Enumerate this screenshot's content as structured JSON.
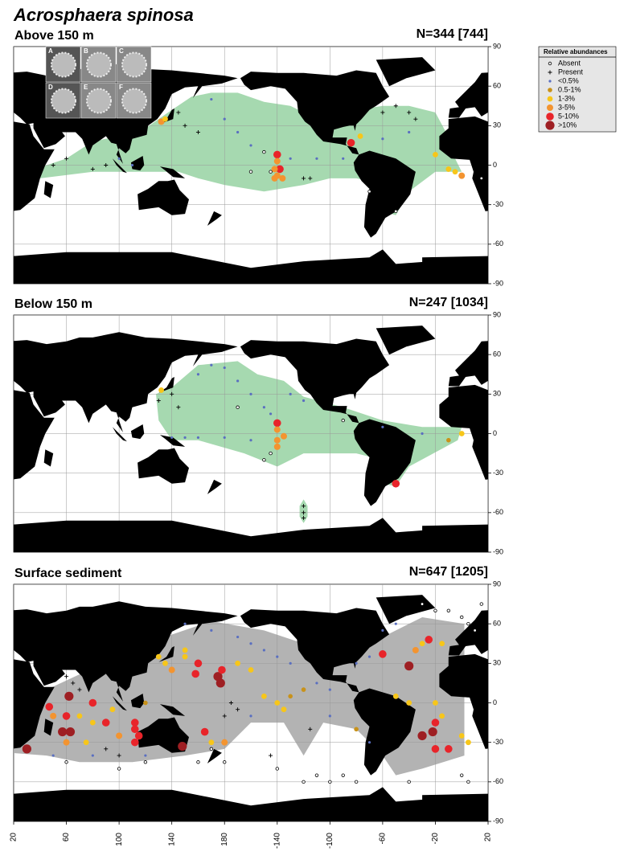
{
  "title": "Acrosphaera spinosa",
  "photo_labels": [
    "A",
    "B",
    "C",
    "D",
    "E",
    "F"
  ],
  "map": {
    "lonlim": [
      20,
      380
    ],
    "latlim": [
      -90,
      90
    ],
    "lat_ticks": [
      90,
      60,
      30,
      0,
      -30,
      -60,
      -90
    ],
    "lon_ticks": [
      20,
      60,
      100,
      140,
      180,
      {
        "value": 220,
        "label": "-140"
      },
      {
        "value": 260,
        "label": "-100"
      },
      {
        "value": 300,
        "label": "-60"
      },
      {
        "value": 340,
        "label": "-20"
      },
      {
        "value": 380,
        "label": "20"
      }
    ]
  },
  "legend": {
    "title": "Relative abundances",
    "items": [
      {
        "name": "Absent",
        "color": "#000000",
        "marker": "open"
      },
      {
        "name": "Present",
        "color": "#000000",
        "marker": "plus"
      },
      {
        "name": "<0.5%",
        "color": "#5a6fc0",
        "marker": "dot"
      },
      {
        "name": "0.5-1%",
        "color": "#c8921a",
        "marker": "disc"
      },
      {
        "name": "1-3%",
        "color": "#f7c61a",
        "marker": "disc"
      },
      {
        "name": "3-5%",
        "color": "#f39430",
        "marker": "disc"
      },
      {
        "name": "5-10%",
        "color": "#e8242a",
        "marker": "disc"
      },
      {
        "name": ">10%",
        "color": "#9e1f23",
        "marker": "disc"
      }
    ]
  },
  "panels": [
    {
      "title": "Above 150 m",
      "n_label": "N=344 [744]",
      "range_color": "#a6d9b0",
      "points": [
        [
          220,
          8,
          "5-10%"
        ],
        [
          220,
          3,
          "3-5%"
        ],
        [
          222,
          -3,
          "5-10%"
        ],
        [
          220,
          -8,
          "3-5%"
        ],
        [
          224,
          -10,
          "3-5%"
        ],
        [
          218,
          -10,
          "3-5%"
        ],
        [
          218,
          -3,
          "3-5%"
        ],
        [
          276,
          17,
          "5-10%"
        ],
        [
          132,
          33,
          "3-5%"
        ],
        [
          135,
          35,
          "1-3%"
        ],
        [
          283,
          22,
          "1-3%"
        ],
        [
          340,
          8,
          "1-3%"
        ],
        [
          350,
          -3,
          "1-3%"
        ],
        [
          355,
          -5,
          "1-3%"
        ],
        [
          360,
          -8,
          "3-5%"
        ],
        [
          170,
          50,
          "<0.5%"
        ],
        [
          180,
          35,
          "<0.5%"
        ],
        [
          190,
          25,
          "<0.5%"
        ],
        [
          200,
          15,
          "<0.5%"
        ],
        [
          230,
          5,
          "<0.5%"
        ],
        [
          250,
          5,
          "<0.5%"
        ],
        [
          270,
          5,
          "<0.5%"
        ],
        [
          300,
          20,
          "<0.5%"
        ],
        [
          320,
          25,
          "<0.5%"
        ],
        [
          100,
          5,
          "<0.5%"
        ],
        [
          110,
          0,
          "<0.5%"
        ],
        [
          145,
          40,
          "Present"
        ],
        [
          150,
          30,
          "Present"
        ],
        [
          160,
          25,
          "Present"
        ],
        [
          270,
          35,
          "Present"
        ],
        [
          300,
          40,
          "Present"
        ],
        [
          310,
          45,
          "Present"
        ],
        [
          320,
          40,
          "Present"
        ],
        [
          325,
          35,
          "Present"
        ],
        [
          40,
          5,
          "Present"
        ],
        [
          50,
          0,
          "Present"
        ],
        [
          60,
          5,
          "Present"
        ],
        [
          80,
          -3,
          "Present"
        ],
        [
          90,
          0,
          "Present"
        ],
        [
          240,
          -10,
          "Present"
        ],
        [
          245,
          -10,
          "Present"
        ],
        [
          210,
          10,
          "Absent"
        ],
        [
          215,
          -5,
          "Absent"
        ],
        [
          200,
          -5,
          "Absent"
        ],
        [
          310,
          -35,
          "Absent"
        ],
        [
          290,
          -20,
          "Absent"
        ],
        [
          375,
          -10,
          "Absent"
        ]
      ]
    },
    {
      "title": "Below 150 m",
      "n_label": "N=247 [1034]",
      "range_color": "#a6d9b0",
      "points": [
        [
          220,
          8,
          "5-10%"
        ],
        [
          220,
          3,
          "3-5%"
        ],
        [
          225,
          -2,
          "3-5%"
        ],
        [
          220,
          -5,
          "3-5%"
        ],
        [
          220,
          -10,
          "3-5%"
        ],
        [
          310,
          -38,
          "5-10%"
        ],
        [
          132,
          33,
          "1-3%"
        ],
        [
          360,
          0,
          "1-3%"
        ],
        [
          350,
          -5,
          "0.5-1%"
        ],
        [
          160,
          45,
          "<0.5%"
        ],
        [
          170,
          52,
          "<0.5%"
        ],
        [
          180,
          50,
          "<0.5%"
        ],
        [
          190,
          40,
          "<0.5%"
        ],
        [
          200,
          30,
          "<0.5%"
        ],
        [
          210,
          20,
          "<0.5%"
        ],
        [
          215,
          15,
          "<0.5%"
        ],
        [
          230,
          30,
          "<0.5%"
        ],
        [
          240,
          25,
          "<0.5%"
        ],
        [
          140,
          -3,
          "<0.5%"
        ],
        [
          150,
          -3,
          "<0.5%"
        ],
        [
          160,
          -3,
          "<0.5%"
        ],
        [
          180,
          -3,
          "<0.5%"
        ],
        [
          200,
          -5,
          "<0.5%"
        ],
        [
          300,
          5,
          "<0.5%"
        ],
        [
          330,
          0,
          "<0.5%"
        ],
        [
          240,
          -55,
          "Present"
        ],
        [
          240,
          -60,
          "Present"
        ],
        [
          240,
          -64,
          "Present"
        ],
        [
          130,
          25,
          "Present"
        ],
        [
          140,
          30,
          "Present"
        ],
        [
          145,
          20,
          "Present"
        ],
        [
          190,
          20,
          "Absent"
        ],
        [
          215,
          -15,
          "Absent"
        ],
        [
          210,
          -20,
          "Absent"
        ],
        [
          270,
          10,
          "Absent"
        ]
      ]
    },
    {
      "title": "Surface sediment",
      "n_label": "N=647 [1205]",
      "range_color": "#b3b3b3",
      "points": [
        [
          30,
          -35,
          ">10%"
        ],
        [
          47,
          -3,
          "5-10%"
        ],
        [
          62,
          5,
          ">10%"
        ],
        [
          60,
          -10,
          "5-10%"
        ],
        [
          63,
          -22,
          ">10%"
        ],
        [
          57,
          -22,
          ">10%"
        ],
        [
          80,
          0,
          "5-10%"
        ],
        [
          90,
          -15,
          "5-10%"
        ],
        [
          112,
          -15,
          "5-10%"
        ],
        [
          112,
          -20,
          "5-10%"
        ],
        [
          115,
          -25,
          "5-10%"
        ],
        [
          112,
          -30,
          "5-10%"
        ],
        [
          148,
          -33,
          ">10%"
        ],
        [
          165,
          -22,
          "5-10%"
        ],
        [
          158,
          22,
          "5-10%"
        ],
        [
          175,
          20,
          ">10%"
        ],
        [
          177,
          15,
          ">10%"
        ],
        [
          178,
          25,
          "5-10%"
        ],
        [
          160,
          30,
          "5-10%"
        ],
        [
          300,
          37,
          "5-10%"
        ],
        [
          320,
          28,
          ">10%"
        ],
        [
          335,
          48,
          "5-10%"
        ],
        [
          340,
          -15,
          "5-10%"
        ],
        [
          338,
          -22,
          ">10%"
        ],
        [
          330,
          -25,
          ">10%"
        ],
        [
          340,
          -35,
          "5-10%"
        ],
        [
          350,
          -35,
          "5-10%"
        ],
        [
          130,
          35,
          "1-3%"
        ],
        [
          135,
          30,
          "1-3%"
        ],
        [
          140,
          25,
          "3-5%"
        ],
        [
          150,
          35,
          "1-3%"
        ],
        [
          150,
          40,
          "1-3%"
        ],
        [
          190,
          30,
          "1-3%"
        ],
        [
          200,
          25,
          "1-3%"
        ],
        [
          210,
          5,
          "1-3%"
        ],
        [
          220,
          0,
          "1-3%"
        ],
        [
          225,
          -5,
          "1-3%"
        ],
        [
          230,
          5,
          "0.5-1%"
        ],
        [
          240,
          10,
          "0.5-1%"
        ],
        [
          310,
          5,
          "1-3%"
        ],
        [
          320,
          0,
          "1-3%"
        ],
        [
          340,
          0,
          "1-3%"
        ],
        [
          345,
          -10,
          "1-3%"
        ],
        [
          360,
          -25,
          "1-3%"
        ],
        [
          365,
          -30,
          "1-3%"
        ],
        [
          330,
          45,
          "1-3%"
        ],
        [
          345,
          45,
          "1-3%"
        ],
        [
          325,
          40,
          "3-5%"
        ],
        [
          50,
          -10,
          "3-5%"
        ],
        [
          70,
          -10,
          "1-3%"
        ],
        [
          80,
          -15,
          "1-3%"
        ],
        [
          95,
          -5,
          "1-3%"
        ],
        [
          100,
          -25,
          "3-5%"
        ],
        [
          60,
          -30,
          "3-5%"
        ],
        [
          75,
          -30,
          "1-3%"
        ],
        [
          170,
          -30,
          "1-3%"
        ],
        [
          180,
          -30,
          "3-5%"
        ],
        [
          120,
          0,
          "0.5-1%"
        ],
        [
          280,
          -20,
          "0.5-1%"
        ],
        [
          150,
          60,
          "<0.5%"
        ],
        [
          170,
          55,
          "<0.5%"
        ],
        [
          190,
          50,
          "<0.5%"
        ],
        [
          200,
          45,
          "<0.5%"
        ],
        [
          210,
          40,
          "<0.5%"
        ],
        [
          220,
          35,
          "<0.5%"
        ],
        [
          230,
          30,
          "<0.5%"
        ],
        [
          250,
          15,
          "<0.5%"
        ],
        [
          260,
          10,
          "<0.5%"
        ],
        [
          280,
          30,
          "<0.5%"
        ],
        [
          290,
          35,
          "<0.5%"
        ],
        [
          300,
          55,
          "<0.5%"
        ],
        [
          310,
          60,
          "<0.5%"
        ],
        [
          120,
          -40,
          "<0.5%"
        ],
        [
          200,
          -10,
          "<0.5%"
        ],
        [
          260,
          -10,
          "<0.5%"
        ],
        [
          290,
          -30,
          "<0.5%"
        ],
        [
          50,
          -40,
          "<0.5%"
        ],
        [
          80,
          -40,
          "<0.5%"
        ],
        [
          60,
          20,
          "Present"
        ],
        [
          65,
          15,
          "Present"
        ],
        [
          70,
          10,
          "Present"
        ],
        [
          90,
          -35,
          "Present"
        ],
        [
          100,
          -40,
          "Present"
        ],
        [
          180,
          -10,
          "Present"
        ],
        [
          190,
          -5,
          "Present"
        ],
        [
          185,
          0,
          "Present"
        ],
        [
          300,
          -30,
          "Present"
        ],
        [
          310,
          -30,
          "Present"
        ],
        [
          245,
          -20,
          "Present"
        ],
        [
          215,
          -40,
          "Present"
        ],
        [
          340,
          70,
          "Absent"
        ],
        [
          350,
          70,
          "Absent"
        ],
        [
          360,
          65,
          "Absent"
        ],
        [
          365,
          60,
          "Absent"
        ],
        [
          370,
          55,
          "Absent"
        ],
        [
          375,
          75,
          "Absent"
        ],
        [
          330,
          75,
          "Absent"
        ],
        [
          240,
          -60,
          "Absent"
        ],
        [
          250,
          -55,
          "Absent"
        ],
        [
          260,
          -60,
          "Absent"
        ],
        [
          270,
          -55,
          "Absent"
        ],
        [
          280,
          -60,
          "Absent"
        ],
        [
          220,
          -50,
          "Absent"
        ],
        [
          180,
          -45,
          "Absent"
        ],
        [
          160,
          -45,
          "Absent"
        ],
        [
          120,
          -45,
          "Absent"
        ],
        [
          100,
          -50,
          "Absent"
        ],
        [
          60,
          -45,
          "Absent"
        ],
        [
          360,
          -55,
          "Absent"
        ],
        [
          365,
          -60,
          "Absent"
        ],
        [
          320,
          -60,
          "Absent"
        ],
        [
          170,
          -35,
          "Absent"
        ]
      ]
    }
  ]
}
